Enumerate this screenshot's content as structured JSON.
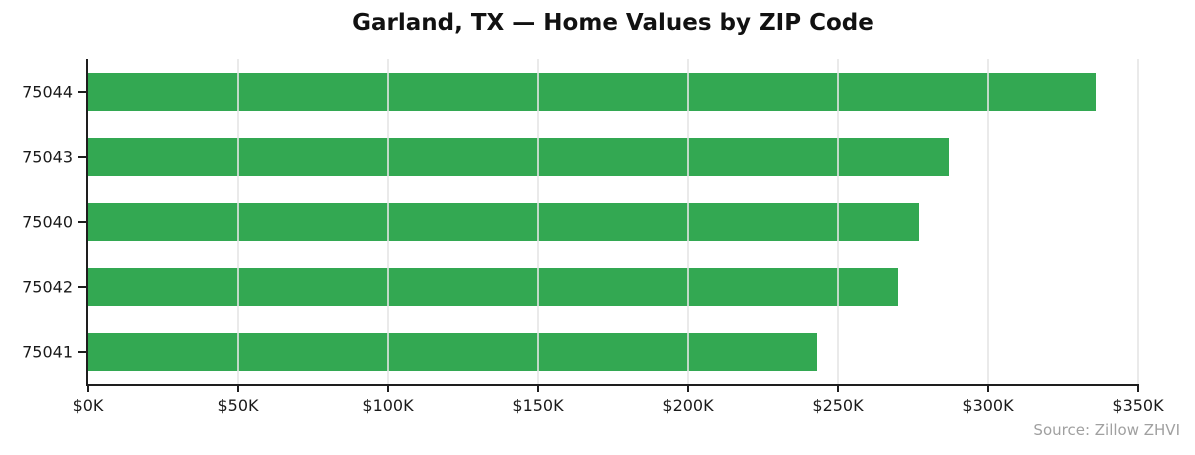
{
  "chart_data": {
    "type": "bar",
    "orientation": "horizontal",
    "title": "Garland, TX — Home Values by ZIP Code",
    "categories": [
      "75044",
      "75043",
      "75040",
      "75042",
      "75041"
    ],
    "values": [
      336000,
      287000,
      277000,
      270000,
      243000
    ],
    "value_unit": "USD",
    "xlim": [
      0,
      350000
    ],
    "x_ticks": [
      {
        "value": 0,
        "label": "$0K"
      },
      {
        "value": 50000,
        "label": "$50K"
      },
      {
        "value": 100000,
        "label": "$100K"
      },
      {
        "value": 150000,
        "label": "$150K"
      },
      {
        "value": 200000,
        "label": "$200K"
      },
      {
        "value": 250000,
        "label": "$250K"
      },
      {
        "value": 300000,
        "label": "$300K"
      },
      {
        "value": 350000,
        "label": "$350K"
      }
    ],
    "ylabel": "",
    "xlabel": "",
    "grid": "vertical",
    "legend": "none",
    "source_note": "Source: Zillow ZHVI",
    "colors": {
      "bar": "#33a852",
      "grid": "#e5e5e5",
      "axis": "#1e1e1e",
      "tick_label": "#1a1a1a",
      "source": "#a0a0a0",
      "background": "#ffffff"
    }
  }
}
